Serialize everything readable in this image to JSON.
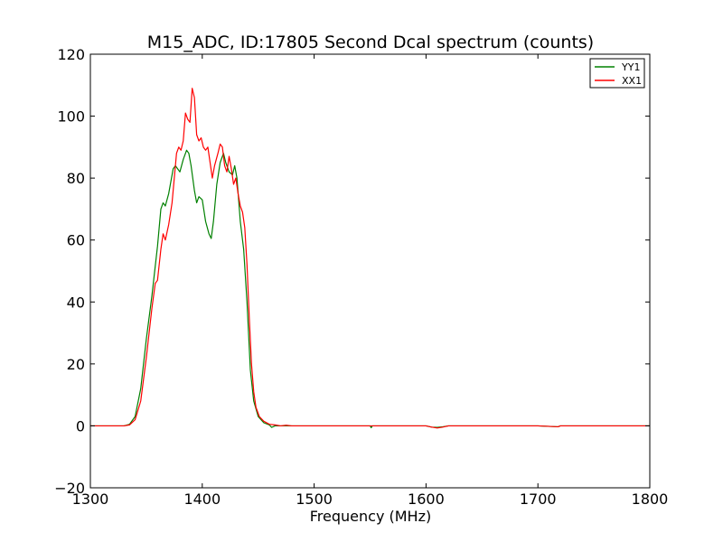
{
  "chart_data": {
    "type": "line",
    "title": "M15_ADC, ID:17805 Second Dcal spectrum (counts)",
    "xlabel": "Frequency (MHz)",
    "ylabel": "",
    "xlim": [
      1300,
      1800
    ],
    "ylim": [
      -20,
      120
    ],
    "x_ticks": [
      1300,
      1400,
      1500,
      1600,
      1700,
      1800
    ],
    "y_ticks": [
      -20,
      0,
      20,
      40,
      60,
      80,
      100,
      120
    ],
    "x_tick_labels": [
      "1300",
      "1400",
      "1500",
      "1600",
      "1700",
      "1800"
    ],
    "y_tick_labels": [
      "−20",
      "0",
      "20",
      "40",
      "60",
      "80",
      "100",
      "120"
    ],
    "grid": false,
    "legend_position": "top-right",
    "series": [
      {
        "name": "YY1",
        "color": "#008000",
        "points": [
          [
            1300,
            0
          ],
          [
            1325,
            0
          ],
          [
            1330,
            0
          ],
          [
            1335,
            0.5
          ],
          [
            1340,
            3
          ],
          [
            1345,
            12
          ],
          [
            1350,
            28
          ],
          [
            1355,
            42
          ],
          [
            1360,
            58
          ],
          [
            1363,
            70
          ],
          [
            1365,
            72
          ],
          [
            1367,
            71
          ],
          [
            1370,
            75
          ],
          [
            1374,
            83
          ],
          [
            1376,
            84
          ],
          [
            1378,
            83
          ],
          [
            1380,
            82
          ],
          [
            1383,
            86
          ],
          [
            1386,
            89
          ],
          [
            1388,
            88
          ],
          [
            1390,
            84
          ],
          [
            1393,
            76
          ],
          [
            1395,
            72
          ],
          [
            1397,
            74
          ],
          [
            1400,
            73
          ],
          [
            1403,
            66
          ],
          [
            1406,
            62
          ],
          [
            1408,
            60.5
          ],
          [
            1410,
            66
          ],
          [
            1413,
            78
          ],
          [
            1416,
            85
          ],
          [
            1419,
            88
          ],
          [
            1421,
            85
          ],
          [
            1424,
            82
          ],
          [
            1427,
            81
          ],
          [
            1429,
            84
          ],
          [
            1431,
            80
          ],
          [
            1434,
            66
          ],
          [
            1437,
            57
          ],
          [
            1440,
            40
          ],
          [
            1443,
            18
          ],
          [
            1446,
            8
          ],
          [
            1450,
            3
          ],
          [
            1455,
            1
          ],
          [
            1460,
            0.3
          ],
          [
            1462,
            -0.5
          ],
          [
            1465,
            0
          ],
          [
            1470,
            0
          ],
          [
            1480,
            0
          ],
          [
            1500,
            0
          ],
          [
            1550,
            0
          ],
          [
            1551,
            -0.6
          ],
          [
            1552,
            0
          ],
          [
            1600,
            0
          ],
          [
            1605,
            -0.4
          ],
          [
            1610,
            -0.5
          ],
          [
            1615,
            -0.3
          ],
          [
            1620,
            0
          ],
          [
            1650,
            0
          ],
          [
            1700,
            0
          ],
          [
            1718,
            -0.3
          ],
          [
            1720,
            0
          ],
          [
            1800,
            0
          ]
        ]
      },
      {
        "name": "XX1",
        "color": "#ff0000",
        "points": [
          [
            1300,
            0
          ],
          [
            1325,
            0
          ],
          [
            1330,
            0
          ],
          [
            1335,
            0.3
          ],
          [
            1340,
            2
          ],
          [
            1345,
            8
          ],
          [
            1350,
            22
          ],
          [
            1355,
            38
          ],
          [
            1358,
            46
          ],
          [
            1360,
            47
          ],
          [
            1363,
            57
          ],
          [
            1365,
            62
          ],
          [
            1367,
            60
          ],
          [
            1370,
            65
          ],
          [
            1373,
            72
          ],
          [
            1375,
            80
          ],
          [
            1377,
            88
          ],
          [
            1379,
            90
          ],
          [
            1381,
            89
          ],
          [
            1383,
            92
          ],
          [
            1385,
            101
          ],
          [
            1387,
            99
          ],
          [
            1389,
            98
          ],
          [
            1391,
            109
          ],
          [
            1393,
            106
          ],
          [
            1395,
            94
          ],
          [
            1397,
            92
          ],
          [
            1399,
            93
          ],
          [
            1401,
            90
          ],
          [
            1403,
            89
          ],
          [
            1405,
            90
          ],
          [
            1407,
            85
          ],
          [
            1409,
            80
          ],
          [
            1411,
            84
          ],
          [
            1414,
            88
          ],
          [
            1416,
            91
          ],
          [
            1418,
            90
          ],
          [
            1420,
            84
          ],
          [
            1422,
            82
          ],
          [
            1424,
            87
          ],
          [
            1426,
            83
          ],
          [
            1428,
            78
          ],
          [
            1430,
            80
          ],
          [
            1432,
            75
          ],
          [
            1434,
            71
          ],
          [
            1436,
            69
          ],
          [
            1438,
            64
          ],
          [
            1440,
            52
          ],
          [
            1442,
            35
          ],
          [
            1444,
            20
          ],
          [
            1446,
            11
          ],
          [
            1448,
            6
          ],
          [
            1451,
            3
          ],
          [
            1455,
            1.5
          ],
          [
            1460,
            0.5
          ],
          [
            1465,
            0.3
          ],
          [
            1470,
            0
          ],
          [
            1475,
            0.2
          ],
          [
            1480,
            0
          ],
          [
            1500,
            0
          ],
          [
            1550,
            0
          ],
          [
            1600,
            0
          ],
          [
            1605,
            -0.4
          ],
          [
            1610,
            -0.7
          ],
          [
            1615,
            -0.4
          ],
          [
            1620,
            0
          ],
          [
            1650,
            0
          ],
          [
            1675,
            0
          ],
          [
            1700,
            0
          ],
          [
            1718,
            -0.3
          ],
          [
            1720,
            0
          ],
          [
            1800,
            0
          ]
        ]
      }
    ]
  }
}
